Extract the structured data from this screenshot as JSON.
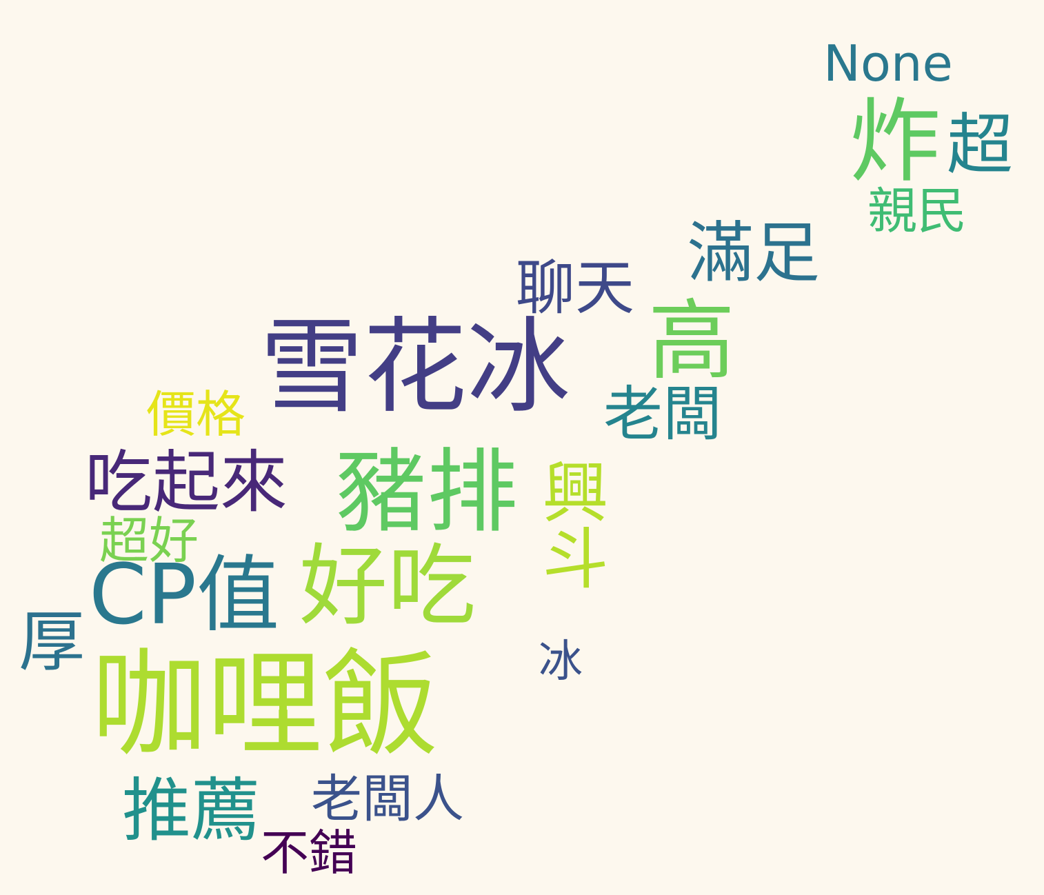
{
  "words": [
    {
      "text": "雪花冰",
      "color": "#433e85"
    },
    {
      "text": "咖哩飯",
      "color": "#addc30"
    },
    {
      "text": "豬排",
      "color": "#5ec962"
    },
    {
      "text": "CP值",
      "color": "#2a788e"
    },
    {
      "text": "好吃",
      "color": "#9fda3a"
    },
    {
      "text": "高",
      "color": "#6ccd5a"
    },
    {
      "text": "炸",
      "color": "#5ec962"
    },
    {
      "text": "興斗",
      "color": "#b5de2b"
    },
    {
      "text": "吃起來",
      "color": "#482878"
    },
    {
      "text": "滿足",
      "color": "#2c728e"
    },
    {
      "text": "推薦",
      "color": "#21918c"
    },
    {
      "text": "老闆",
      "color": "#25848e"
    },
    {
      "text": "聊天",
      "color": "#3e4989"
    },
    {
      "text": "超",
      "color": "#25848e"
    },
    {
      "text": "None",
      "color": "#2a788e"
    },
    {
      "text": "親民",
      "color": "#3fbc73"
    },
    {
      "text": "厚",
      "color": "#2c728e"
    },
    {
      "text": "老闆人",
      "color": "#3b528b"
    },
    {
      "text": "價格",
      "color": "#e5e419"
    },
    {
      "text": "超好",
      "color": "#7ad151"
    },
    {
      "text": "不錯",
      "color": "#440154"
    },
    {
      "text": "冰",
      "color": "#3b528b"
    }
  ]
}
